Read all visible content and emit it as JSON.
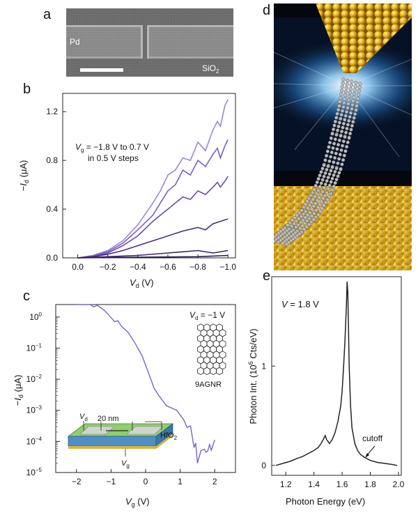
{
  "panels": {
    "a": "a",
    "b": "b",
    "c": "c",
    "d": "d",
    "e": "e"
  },
  "panel_a": {
    "metal_label": "Pd",
    "substrate_label": "SiO",
    "substrate_sub": "2"
  },
  "chart_data": [
    {
      "type": "line",
      "panel": "b",
      "xlabel": "V",
      "xlabel_sub": "d",
      "xlabel_unit": " (V)",
      "ylabel_prefix": "−I",
      "ylabel_sub": "d",
      "ylabel_unit": " (μA)",
      "xlim": [
        0.1,
        -1.05
      ],
      "ylim": [
        0,
        1.35
      ],
      "xticks": [
        0.0,
        -0.2,
        -0.4,
        -0.6,
        -0.8,
        -1.0
      ],
      "xtick_labels": [
        "0.0",
        "−0.2",
        "−0.4",
        "−0.6",
        "−0.8",
        "−1.0"
      ],
      "yticks": [
        0.0,
        0.4,
        0.8,
        1.2
      ],
      "ytick_labels": [
        "0.0",
        "0.4",
        "0.8",
        "1.2"
      ],
      "annotation_line1_main": "V",
      "annotation_line1_sub": "g",
      "annotation_line1_rest": " = −1.8 V to 0.7 V",
      "annotation_line2": "in 0.5 V steps",
      "series": [
        {
          "color": "#9b86d3",
          "x": [
            0,
            -0.1,
            -0.2,
            -0.3,
            -0.4,
            -0.5,
            -0.55,
            -0.6,
            -0.65,
            -0.7,
            -0.75,
            -0.8,
            -0.85,
            -0.9,
            -0.93,
            -0.95,
            -0.98,
            -1.0
          ],
          "y": [
            0,
            0.02,
            0.06,
            0.14,
            0.27,
            0.45,
            0.55,
            0.68,
            0.72,
            0.82,
            0.8,
            0.95,
            0.88,
            1.05,
            1.12,
            1.08,
            1.25,
            1.3
          ]
        },
        {
          "color": "#7a5cc0",
          "x": [
            0,
            -0.1,
            -0.2,
            -0.3,
            -0.4,
            -0.5,
            -0.55,
            -0.6,
            -0.65,
            -0.7,
            -0.75,
            -0.8,
            -0.85,
            -0.9,
            -0.93,
            -0.95,
            -0.98,
            -1.0
          ],
          "y": [
            0,
            0.015,
            0.05,
            0.12,
            0.23,
            0.35,
            0.45,
            0.55,
            0.6,
            0.72,
            0.68,
            0.8,
            0.75,
            0.85,
            0.9,
            0.82,
            0.92,
            0.97
          ]
        },
        {
          "color": "#6a4aae",
          "x": [
            0,
            -0.1,
            -0.2,
            -0.3,
            -0.4,
            -0.5,
            -0.55,
            -0.6,
            -0.65,
            -0.7,
            -0.75,
            -0.8,
            -0.85,
            -0.9,
            -0.93,
            -0.95,
            -0.98,
            -1.0
          ],
          "y": [
            0,
            0.01,
            0.04,
            0.1,
            0.18,
            0.3,
            0.35,
            0.4,
            0.45,
            0.5,
            0.48,
            0.55,
            0.52,
            0.58,
            0.62,
            0.58,
            0.63,
            0.67
          ]
        },
        {
          "color": "#4a2f8a",
          "x": [
            0,
            -0.1,
            -0.2,
            -0.3,
            -0.4,
            -0.5,
            -0.6,
            -0.7,
            -0.8,
            -0.85,
            -0.9,
            -0.95,
            -1.0
          ],
          "y": [
            0,
            0.01,
            0.03,
            0.06,
            0.1,
            0.14,
            0.18,
            0.22,
            0.25,
            0.23,
            0.28,
            0.3,
            0.32
          ]
        },
        {
          "color": "#3a2370",
          "x": [
            0,
            -0.2,
            -0.4,
            -0.6,
            -0.7,
            -0.8,
            -0.9,
            -1.0
          ],
          "y": [
            0,
            0.01,
            0.02,
            0.04,
            0.05,
            0.06,
            0.04,
            0.06
          ]
        },
        {
          "color": "#2a1a55",
          "x": [
            0,
            -0.4,
            -0.8,
            -0.9,
            -1.0
          ],
          "y": [
            0,
            0.005,
            0.01,
            0.015,
            0.02
          ]
        }
      ]
    },
    {
      "type": "line",
      "panel": "c",
      "yscale": "log",
      "xlabel": "V",
      "xlabel_sub": "g",
      "xlabel_unit": " (V)",
      "ylabel_prefix": "−I",
      "ylabel_sub": "d",
      "ylabel_unit": " (μA)",
      "xlim": [
        -2.6,
        2.6
      ],
      "ylim_log10": [
        -5,
        0.4
      ],
      "xticks": [
        -2,
        -1,
        0,
        1,
        2
      ],
      "xtick_labels": [
        "−2",
        "−1",
        "0",
        "1",
        "2"
      ],
      "yticks_log10": [
        0,
        -1,
        -2,
        -3,
        -4,
        -5
      ],
      "ytick_exps": [
        "0",
        "−1",
        "−2",
        "−3",
        "−4",
        "−5"
      ],
      "ytick_base": "10",
      "annotation_vd_main": "V",
      "annotation_vd_sub": "d",
      "annotation_vd_rest": " = −1 V",
      "molecule_label": "9AGNR",
      "inset_vd": "V",
      "inset_vd_sub": "d",
      "inset_vg": "V",
      "inset_vg_sub": "g",
      "inset_length": "20 nm",
      "inset_oxide": "HfO",
      "inset_oxide_sub": "2",
      "series": [
        {
          "color": "#7c62c8",
          "x": [
            -2.0,
            -1.8,
            -1.6,
            -1.5,
            -1.4,
            -1.2,
            -1.0,
            -0.9,
            -0.8,
            -0.7,
            -0.5,
            -0.3,
            -0.1,
            0.0,
            0.1,
            0.25,
            0.4,
            0.6,
            0.8,
            0.9,
            1.0,
            1.1,
            1.2,
            1.3,
            1.4,
            1.45,
            1.5,
            1.6,
            1.7,
            1.75,
            1.8,
            1.85,
            1.9,
            2.0
          ],
          "log10y": [
            0.55,
            0.47,
            0.45,
            0.32,
            0.38,
            0.22,
            -0.02,
            -0.15,
            -0.12,
            -0.3,
            -0.5,
            -0.85,
            -1.25,
            -1.55,
            -1.85,
            -2.3,
            -2.55,
            -2.85,
            -2.95,
            -3.0,
            -3.15,
            -3.3,
            -3.55,
            -3.5,
            -4.2,
            -4.05,
            -4.7,
            -4.3,
            -4.25,
            -4.35,
            -4.3,
            -4.1,
            -4.28,
            -3.95
          ]
        }
      ]
    },
    {
      "type": "line",
      "panel": "e",
      "xlabel": "Photon Energy (eV)",
      "ylabel_prefix": "Photon Int. (10",
      "ylabel_sup": "6",
      "ylabel_rest": " Cts/eV)",
      "xlim": [
        1.1,
        2.02
      ],
      "ylim": [
        -0.1,
        1.9
      ],
      "xticks": [
        1.2,
        1.4,
        1.6,
        1.8,
        2.0
      ],
      "xtick_labels": [
        "1.2",
        "1.4",
        "1.6",
        "1.8",
        "2.0"
      ],
      "yticks": [
        0,
        1
      ],
      "ytick_labels": [
        "0",
        "1"
      ],
      "annotation_v": "V",
      "annotation_v_rest": " = 1.8 V",
      "annotation_cutoff": "cutoff",
      "series": [
        {
          "color": "#222222",
          "x": [
            1.13,
            1.18,
            1.23,
            1.28,
            1.32,
            1.36,
            1.4,
            1.43,
            1.45,
            1.47,
            1.48,
            1.49,
            1.51,
            1.53,
            1.55,
            1.57,
            1.59,
            1.6,
            1.61,
            1.62,
            1.63,
            1.635,
            1.64,
            1.645,
            1.65,
            1.66,
            1.67,
            1.69,
            1.71,
            1.73,
            1.76,
            1.8,
            1.85,
            1.9,
            1.95,
            1.99
          ],
          "y": [
            0.0,
            0.02,
            0.04,
            0.07,
            0.09,
            0.12,
            0.15,
            0.18,
            0.22,
            0.27,
            0.3,
            0.26,
            0.22,
            0.26,
            0.33,
            0.44,
            0.6,
            0.75,
            0.98,
            1.25,
            1.6,
            1.85,
            1.75,
            1.4,
            1.0,
            0.6,
            0.38,
            0.22,
            0.15,
            0.11,
            0.08,
            0.05,
            0.03,
            0.02,
            0.01,
            0.0
          ]
        }
      ]
    }
  ]
}
